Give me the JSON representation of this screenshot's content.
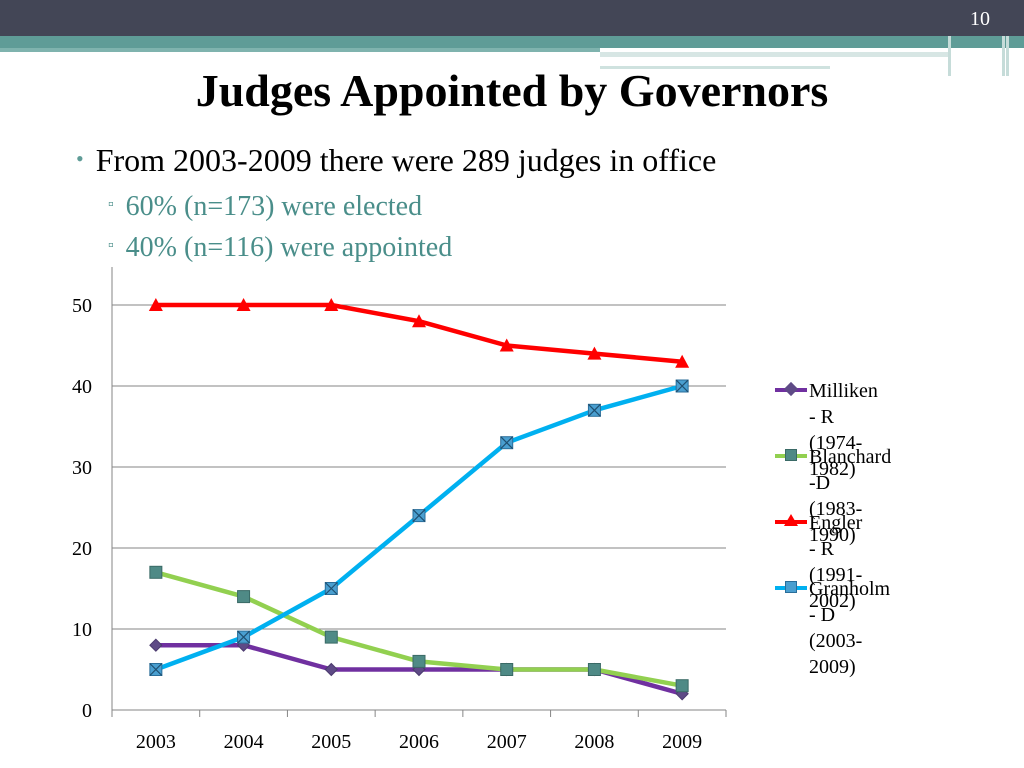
{
  "slide": {
    "number": "10",
    "title": "Judges Appointed by Governors",
    "bullet": "From 2003-2009 there were 289 judges in office",
    "sub_bullets": [
      "60% (n=173) were elected",
      "40% (n=116) were appointed"
    ]
  },
  "chart_data": {
    "type": "line",
    "categories": [
      "2003",
      "2004",
      "2005",
      "2006",
      "2007",
      "2008",
      "2009"
    ],
    "ylim": [
      0,
      50
    ],
    "yticks": [
      0,
      10,
      20,
      30,
      40,
      50
    ],
    "grid": true,
    "legend_position": "right",
    "series": [
      {
        "name": "Milliken - R",
        "period": "(1974-1982)",
        "color": "#7030a0",
        "marker": "diamond",
        "values": [
          8,
          8,
          5,
          5,
          5,
          5,
          2
        ]
      },
      {
        "name": "Blanchard -D",
        "period": "(1983-1990)",
        "color": "#92d050",
        "marker": "square",
        "values": [
          17,
          14,
          9,
          6,
          5,
          5,
          3
        ]
      },
      {
        "name": "Engler - R",
        "period": "(1991-2002)",
        "color": "#ff0000",
        "marker": "triangle",
        "values": [
          50,
          50,
          50,
          48,
          45,
          44,
          43
        ]
      },
      {
        "name": "Granholm - D",
        "period": "(2003-2009)",
        "color": "#00b0f0",
        "marker": "x-square",
        "values": [
          5,
          9,
          15,
          24,
          33,
          37,
          40
        ]
      }
    ]
  }
}
